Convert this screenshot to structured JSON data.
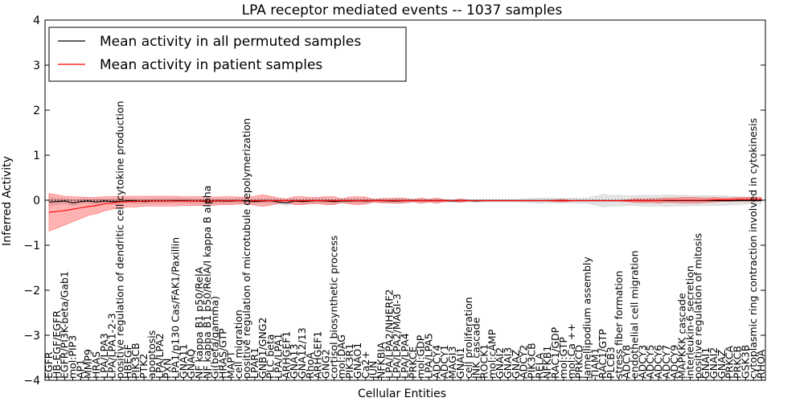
{
  "chart_data": {
    "type": "line",
    "title": "LPA receptor mediated events -- 1037 samples",
    "xlabel": "Cellular Entities",
    "ylabel": "Inferred Activity",
    "ylim": [
      -4,
      4
    ],
    "yticks": [
      "4",
      "3",
      "2",
      "1",
      "0",
      "−1",
      "−2",
      "−3",
      "−4"
    ],
    "grid": false,
    "legend_position": "top-left",
    "categories": [
      "EGFR",
      "HB-EGF/EGFR",
      "EGFR/PI3K-beta/Gab1",
      "mol:PIP3",
      "AP1",
      "MMP9",
      "HRAS",
      "LPA/LPA3",
      "LPA/LPA1-2-3",
      "positive regulation of dendritic cell cytokine production",
      "HBEGF",
      "PIK3CB",
      "PTK2",
      "apoptosis",
      "LPA/LPA2",
      "PXN",
      "LPA1/p130 Cas/FAK1/Paxillin",
      "GNA11",
      "GNAQ",
      "NF kappa B1 p50/RelA",
      "NF kappa B1 p50/RelA/I kappa B alpha",
      "Gi(beta/gamma)",
      "HRAS/GTP",
      "MAPT",
      "cell migration",
      "positive regulation of microtubule depolymerization",
      "LPAR1",
      "GNB1/GNG2",
      "PLC beta",
      "LPA/LPA1",
      "ARHGEF1",
      "GNA13",
      "GNA12/13",
      "RhoA",
      "ARHGEF1",
      "GNG2",
      "cortisol biosynthetic process",
      "mol:DAG",
      "PIK3R1",
      "GNAO1",
      "Ca2+",
      "JUN",
      "NFKBIA",
      "LPA/LPA2/NHERF2",
      "LPA/LPA2/MAGI-3",
      "LPA/LPA4",
      "PRKCE",
      "mol:GDP",
      "LPA/LPA5",
      "ADCY4",
      "ADCY1",
      "MAGI3",
      "GNAI1",
      "cell proliferation",
      "JNK cascade",
      "ROCK1",
      "mol:cAMP",
      "GNAI2",
      "GNAI3",
      "GNAZ",
      "ADCY2",
      "PIK3CB",
      "RELA",
      "NFKB1",
      "RAC1/GDP",
      "mol:GTP",
      "mol:Ca ++",
      "PRKCD",
      "lamellipodium assembly",
      "TIAM1",
      "RAC1/GTP",
      "PLCB3",
      "stress fiber formation",
      "ADCY8",
      "endothelial cell migration",
      "ADCY3",
      "ADCY5",
      "ADCY6",
      "ADCY7",
      "ADCY9",
      "MAPKKK cascade",
      "interleukin-6 secretion",
      "positive regulation of mitosis",
      "GNAI1",
      "GNAI2",
      "GNAZ",
      "PRKCA",
      "PRKCB",
      "GSK3B",
      "cytoplasmic ring contraction involved in cytokinesis",
      "RHOA"
    ],
    "series": [
      {
        "name": "Mean activity in all permuted samples",
        "color": "#000000",
        "values": [
          -0.04,
          -0.03,
          -0.02,
          -0.06,
          -0.03,
          -0.02,
          -0.04,
          -0.02,
          -0.03,
          -0.03,
          -0.01,
          -0.02,
          -0.03,
          -0.02,
          -0.02,
          -0.02,
          -0.01,
          -0.01,
          -0.02,
          -0.02,
          -0.03,
          -0.02,
          -0.02,
          -0.02,
          -0.01,
          -0.02,
          -0.03,
          -0.02,
          -0.01,
          -0.04,
          -0.06,
          -0.02,
          -0.03,
          -0.02,
          -0.01,
          -0.02,
          -0.03,
          -0.02,
          -0.02,
          -0.01,
          -0.02,
          -0.01,
          -0.01,
          -0.02,
          -0.02,
          -0.01,
          -0.01,
          -0.01,
          -0.01,
          -0.01,
          -0.01,
          -0.02,
          -0.01,
          -0.01,
          -0.02,
          -0.01,
          -0.01,
          -0.01,
          -0.01,
          -0.01,
          -0.01,
          -0.01,
          -0.01,
          -0.01,
          -0.01,
          -0.01,
          -0.01,
          -0.01,
          -0.01,
          -0.01,
          -0.01,
          -0.01,
          -0.01,
          -0.01,
          -0.01,
          -0.01,
          -0.01,
          -0.01,
          -0.01,
          -0.01,
          -0.01,
          -0.01,
          -0.01,
          -0.01,
          -0.01,
          -0.01,
          -0.01,
          -0.01,
          -0.01,
          -0.01,
          -0.01
        ],
        "band": [
          0.1,
          0.07,
          0.06,
          0.06,
          0.05,
          0.05,
          0.06,
          0.05,
          0.05,
          0.05,
          0.05,
          0.05,
          0.05,
          0.05,
          0.05,
          0.05,
          0.05,
          0.05,
          0.05,
          0.05,
          0.05,
          0.05,
          0.05,
          0.05,
          0.05,
          0.05,
          0.05,
          0.05,
          0.05,
          0.05,
          0.06,
          0.05,
          0.05,
          0.05,
          0.05,
          0.05,
          0.05,
          0.05,
          0.05,
          0.05,
          0.05,
          0.04,
          0.04,
          0.04,
          0.04,
          0.04,
          0.04,
          0.03,
          0.03,
          0.03,
          0.03,
          0.03,
          0.03,
          0.03,
          0.03,
          0.03,
          0.03,
          0.03,
          0.03,
          0.03,
          0.04,
          0.05,
          0.06,
          0.06,
          0.06,
          0.05,
          0.06,
          0.06,
          0.06,
          0.1,
          0.14,
          0.12,
          0.12,
          0.11,
          0.11,
          0.12,
          0.12,
          0.12,
          0.13,
          0.12,
          0.12,
          0.11,
          0.11,
          0.11,
          0.11,
          0.11,
          0.1,
          0.09,
          0.08,
          0.07,
          0.07
        ]
      },
      {
        "name": "Mean activity in patient samples",
        "color": "#ff0000",
        "values": [
          -0.27,
          -0.25,
          -0.23,
          -0.2,
          -0.17,
          -0.14,
          -0.12,
          -0.08,
          -0.06,
          -0.04,
          -0.03,
          -0.03,
          -0.02,
          -0.02,
          -0.02,
          -0.02,
          -0.02,
          -0.02,
          -0.02,
          -0.02,
          -0.02,
          -0.02,
          -0.01,
          -0.01,
          -0.01,
          -0.01,
          -0.01,
          -0.01,
          -0.01,
          -0.01,
          -0.01,
          -0.01,
          -0.01,
          -0.01,
          -0.01,
          -0.01,
          -0.01,
          -0.01,
          -0.01,
          -0.01,
          -0.01,
          -0.01,
          -0.01,
          -0.01,
          -0.01,
          -0.01,
          -0.01,
          -0.01,
          -0.01,
          -0.01,
          -0.01,
          -0.01,
          -0.01,
          -0.01,
          -0.01,
          -0.01,
          -0.01,
          -0.01,
          -0.01,
          -0.01,
          -0.01,
          -0.01,
          -0.01,
          -0.01,
          -0.01,
          -0.01,
          -0.01,
          -0.01,
          -0.01,
          -0.01,
          -0.01,
          -0.01,
          -0.01,
          -0.01,
          -0.01,
          -0.01,
          -0.01,
          -0.01,
          0.0,
          0.0,
          0.0,
          0.0,
          0.0,
          0.0,
          0.01,
          0.01,
          0.01,
          0.02,
          0.02,
          0.02,
          0.02
        ],
        "band": [
          0.42,
          0.37,
          0.32,
          0.28,
          0.24,
          0.2,
          0.18,
          0.16,
          0.14,
          0.13,
          0.12,
          0.12,
          0.11,
          0.11,
          0.11,
          0.11,
          0.11,
          0.1,
          0.1,
          0.1,
          0.1,
          0.09,
          0.09,
          0.09,
          0.08,
          0.08,
          0.1,
          0.13,
          0.1,
          0.06,
          0.04,
          0.09,
          0.09,
          0.07,
          0.07,
          0.09,
          0.09,
          0.04,
          0.08,
          0.09,
          0.08,
          0.03,
          0.05,
          0.05,
          0.06,
          0.05,
          0.02,
          0.06,
          0.03,
          0.06,
          0.02,
          0.01,
          0.04,
          0.01,
          0.01,
          0.01,
          0.01,
          0.01,
          0.01,
          0.01,
          0.01,
          0.01,
          0.01,
          0.01,
          0.02,
          0.03,
          0.01,
          0.01,
          0.01,
          0.01,
          0.01,
          0.01,
          0.01,
          0.02,
          0.04,
          0.04,
          0.04,
          0.05,
          0.05,
          0.05,
          0.06,
          0.06,
          0.06,
          0.05,
          0.05,
          0.04,
          0.04,
          0.04,
          0.04,
          0.04,
          0.04
        ]
      }
    ]
  }
}
